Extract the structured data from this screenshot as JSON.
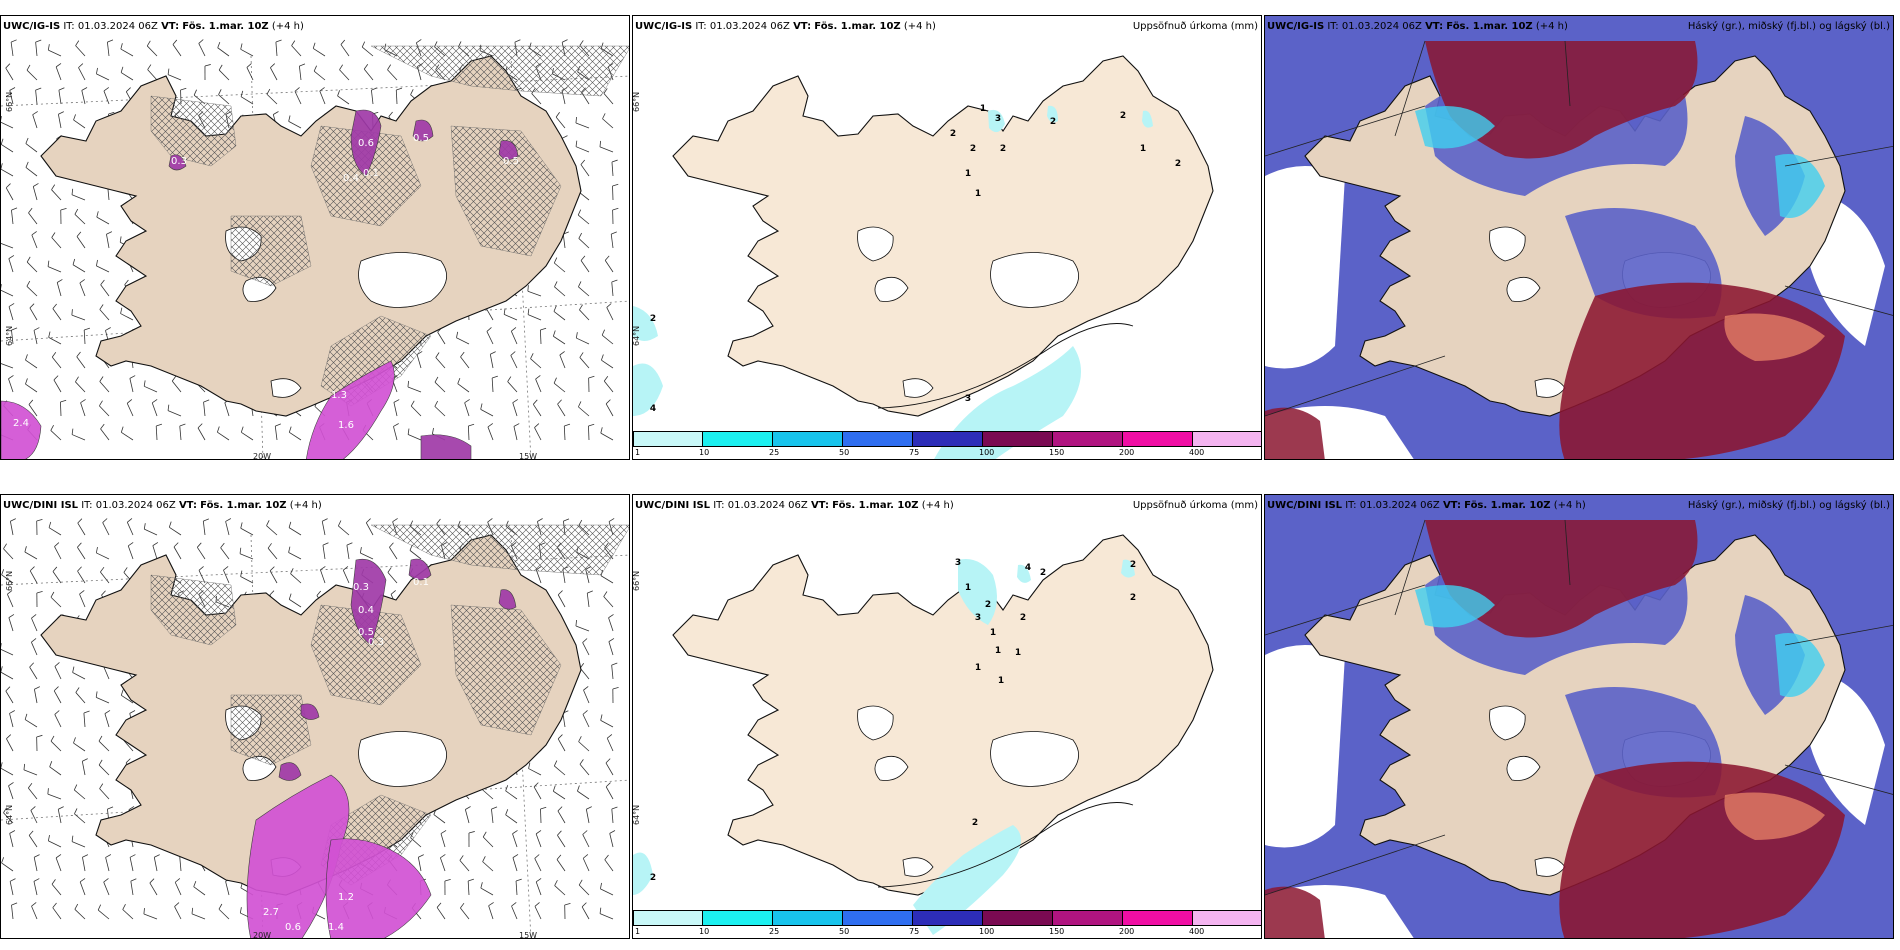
{
  "colors": {
    "land": "#f7e8d6",
    "land_tan": "#e6d3bf",
    "precip_purple": "#a03aa8",
    "precip_magenta": "#d252d4",
    "cloud_high": "#8b1630",
    "cloud_mid": "#5b62c8",
    "cloud_low": "#40d0f0"
  },
  "panels": {
    "top": {
      "wind": {
        "model": "UWC/IG-IS",
        "it": "IT: 01.03.2024 06Z",
        "vt_label": "VT:",
        "vt": "Fös. 1.mar. 10Z",
        "offset": "(+4 h)",
        "values": [
          "0.5",
          "0.5",
          "0.3",
          "0.6",
          "0.1",
          "0.4",
          "1.3",
          "1.6",
          "2.4"
        ]
      },
      "precip": {
        "model": "UWC/IG-IS",
        "it": "IT: 01.03.2024 06Z",
        "vt_label": "VT:",
        "vt": "Fös. 1.mar. 10Z",
        "offset": "(+4 h)",
        "right": "Uppsöfnuð úrkoma (mm)",
        "labels": [
          "1",
          "3",
          "2",
          "2",
          "2",
          "2",
          "2",
          "1",
          "1",
          "1",
          "2",
          "2",
          "3",
          "4"
        ]
      },
      "cloud": {
        "model": "UWC/IG-IS",
        "it": "IT: 01.03.2024 06Z",
        "vt_label": "VT:",
        "vt": "Fös. 1.mar. 10Z",
        "offset": "(+4 h)",
        "right": "Háský (gr.), miðský (fj.bl.) og lágský (bl.)"
      }
    },
    "bottom": {
      "wind": {
        "model": "UWC/DINI ISL",
        "it": "IT: 01.03.2024 06Z",
        "vt_label": "VT:",
        "vt": "Fös. 1.mar. 10Z",
        "offset": "(+4 h)",
        "values": [
          "0.6",
          "0.5",
          "0.3",
          "0.4",
          "0.5",
          "0.3",
          "0.1",
          "2.7",
          "0.6",
          "1.4",
          "1.2"
        ]
      },
      "precip": {
        "model": "UWC/DINI ISL",
        "it": "IT: 01.03.2024 06Z",
        "vt_label": "VT:",
        "vt": "Fös. 1.mar. 10Z",
        "offset": "(+4 h)",
        "right": "Uppsöfnuð úrkoma (mm)",
        "labels": [
          "3",
          "1",
          "4",
          "2",
          "2",
          "2",
          "2",
          "3",
          "1",
          "2",
          "1",
          "1",
          "1",
          "1",
          "2",
          "2"
        ]
      },
      "cloud": {
        "model": "UWC/DINI ISL",
        "it": "IT: 01.03.2024 06Z",
        "vt_label": "VT:",
        "vt": "Fös. 1.mar. 10Z",
        "offset": "(+4 h)",
        "right": "Háský (gr.), miðský (fj.bl.) og lágský (bl.)"
      }
    }
  },
  "axes": {
    "lat_66": "66°N",
    "lat_64": "64°N",
    "lon_20": "20W",
    "lon_15": "15W"
  },
  "colorbar": {
    "ticks": [
      "1",
      "10",
      "25",
      "50",
      "75",
      "100",
      "150",
      "200",
      "400"
    ],
    "colors": [
      "#c8f8f8",
      "#1cf0f0",
      "#18c4ec",
      "#2f6ef0",
      "#2d2db8",
      "#7a0a52",
      "#b01480",
      "#f00ea4",
      "#f4b4f0"
    ]
  }
}
